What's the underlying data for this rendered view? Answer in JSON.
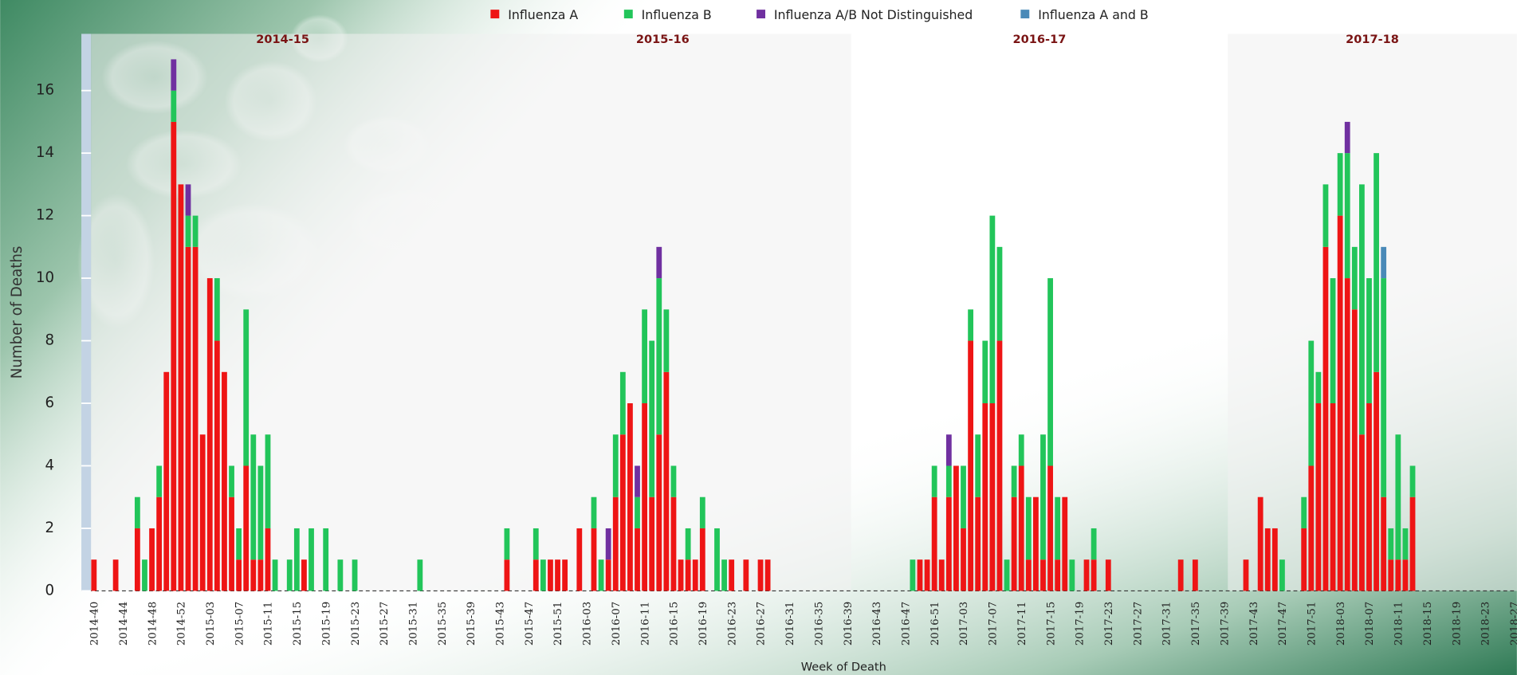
{
  "chart_data": {
    "type": "stacked_bar",
    "x_label": "Week of Death",
    "y_label": "Number of Deaths",
    "season_labels": [
      "2014-15",
      "2015-16",
      "2016-17",
      "2017-18"
    ],
    "ylim": [
      0,
      18
    ],
    "yticks": [
      0,
      2,
      4,
      6,
      8,
      10,
      12,
      14,
      16
    ],
    "categories": [
      "2014-40",
      null,
      null,
      null,
      "2014-44",
      null,
      null,
      null,
      "2014-48",
      null,
      null,
      null,
      "2014-52",
      null,
      null,
      null,
      "2015-03",
      null,
      null,
      null,
      "2015-07",
      null,
      null,
      null,
      "2015-11",
      null,
      null,
      null,
      "2015-15",
      null,
      null,
      null,
      "2015-19",
      null,
      null,
      null,
      "2015-23",
      null,
      null,
      null,
      "2015-27",
      null,
      null,
      null,
      "2015-31",
      null,
      null,
      null,
      "2015-35",
      null,
      null,
      null,
      "2015-39",
      null,
      null,
      null,
      "2015-43",
      null,
      null,
      null,
      "2015-47",
      null,
      null,
      null,
      "2015-51",
      null,
      null,
      null,
      "2016-03",
      null,
      null,
      null,
      "2016-07",
      null,
      null,
      null,
      "2016-11",
      null,
      null,
      null,
      "2016-15",
      null,
      null,
      null,
      "2016-19",
      null,
      null,
      null,
      "2016-23",
      null,
      null,
      null,
      "2016-27",
      null,
      null,
      null,
      "2016-31",
      null,
      null,
      null,
      "2016-35",
      null,
      null,
      null,
      "2016-39",
      null,
      null,
      null,
      "2016-43",
      null,
      null,
      null,
      "2016-47",
      null,
      null,
      null,
      "2016-51",
      null,
      null,
      null,
      "2017-03",
      null,
      null,
      null,
      "2017-07",
      null,
      null,
      null,
      "2017-11",
      null,
      null,
      null,
      "2017-15",
      null,
      null,
      null,
      "2017-19",
      null,
      null,
      null,
      "2017-23",
      null,
      null,
      null,
      "2017-27",
      null,
      null,
      null,
      "2017-31",
      null,
      null,
      null,
      "2017-35",
      null,
      null,
      null,
      "2017-39",
      null,
      null,
      null,
      "2017-43",
      null,
      null,
      null,
      "2017-47",
      null,
      null,
      null,
      "2017-51",
      null,
      null,
      null,
      "2018-03",
      null,
      null,
      null,
      "2018-07",
      null,
      null,
      null,
      "2018-11",
      null,
      null,
      null,
      "2018-15",
      null,
      null,
      null,
      "2018-19",
      null,
      null,
      null,
      "2018-23",
      null,
      null,
      null,
      "2018-27"
    ],
    "series": [
      {
        "name": "Influenza A",
        "color": "#ee1515",
        "values": [
          1,
          0,
          0,
          1,
          0,
          0,
          2,
          0,
          2,
          3,
          7,
          15,
          13,
          11,
          11,
          5,
          10,
          8,
          7,
          3,
          1,
          4,
          1,
          1,
          2,
          0,
          0,
          0,
          0,
          1,
          0,
          0,
          0,
          0,
          0,
          0,
          0,
          0,
          0,
          0,
          0,
          0,
          0,
          0,
          0,
          0,
          0,
          0,
          0,
          0,
          0,
          0,
          0,
          0,
          0,
          0,
          0,
          1,
          0,
          0,
          0,
          1,
          0,
          1,
          1,
          1,
          0,
          2,
          0,
          2,
          0,
          1,
          3,
          5,
          6,
          2,
          6,
          3,
          5,
          7,
          3,
          1,
          1,
          1,
          2,
          0,
          0,
          0,
          1,
          0,
          1,
          0,
          1,
          1,
          0,
          0,
          0,
          0,
          0,
          0,
          0,
          0,
          0,
          0,
          0,
          0,
          0,
          0,
          0,
          0,
          0,
          0,
          0,
          0,
          1,
          1,
          3,
          1,
          3,
          4,
          2,
          8,
          3,
          6,
          6,
          8,
          0,
          3,
          4,
          1,
          3,
          1,
          4,
          1,
          3,
          0,
          0,
          1,
          1,
          0,
          1,
          0,
          0,
          0,
          0,
          0,
          0,
          0,
          0,
          0,
          1,
          0,
          1,
          0,
          0,
          0,
          0,
          0,
          0,
          1,
          0,
          3,
          2,
          2,
          0,
          0,
          0,
          2,
          4,
          6,
          11,
          6,
          12,
          10,
          9,
          5,
          6,
          7,
          3,
          1,
          1,
          1,
          3,
          0,
          0,
          0,
          0,
          0,
          0,
          0,
          0,
          0,
          0,
          0,
          0,
          0,
          0
        ]
      },
      {
        "name": "Influenza B",
        "color": "#22c55a",
        "values": [
          0,
          0,
          0,
          0,
          0,
          0,
          1,
          1,
          0,
          1,
          0,
          1,
          0,
          1,
          1,
          0,
          0,
          2,
          0,
          1,
          1,
          5,
          4,
          3,
          3,
          1,
          0,
          1,
          2,
          0,
          2,
          0,
          2,
          0,
          1,
          0,
          1,
          0,
          0,
          0,
          0,
          0,
          0,
          0,
          0,
          1,
          0,
          0,
          0,
          0,
          0,
          0,
          0,
          0,
          0,
          0,
          0,
          1,
          0,
          0,
          0,
          1,
          1,
          0,
          0,
          0,
          0,
          0,
          0,
          1,
          1,
          0,
          2,
          2,
          0,
          1,
          3,
          5,
          5,
          2,
          1,
          0,
          1,
          0,
          1,
          0,
          2,
          1,
          0,
          0,
          0,
          0,
          0,
          0,
          0,
          0,
          0,
          0,
          0,
          0,
          0,
          0,
          0,
          0,
          0,
          0,
          0,
          0,
          0,
          0,
          0,
          0,
          0,
          1,
          0,
          0,
          1,
          0,
          1,
          0,
          2,
          1,
          2,
          2,
          6,
          3,
          1,
          1,
          1,
          2,
          0,
          4,
          6,
          2,
          0,
          1,
          0,
          0,
          1,
          0,
          0,
          0,
          0,
          0,
          0,
          0,
          0,
          0,
          0,
          0,
          0,
          0,
          0,
          0,
          0,
          0,
          0,
          0,
          0,
          0,
          0,
          0,
          0,
          0,
          1,
          0,
          0,
          1,
          4,
          1,
          2,
          4,
          2,
          4,
          2,
          8,
          4,
          7,
          7,
          1,
          4,
          1,
          1,
          0,
          0,
          0,
          0,
          0,
          0,
          0,
          0,
          0,
          0,
          0,
          0,
          0,
          0
        ]
      },
      {
        "name": "Influenza A/B Not Distinguished",
        "color": "#7030a0",
        "values": [
          0,
          0,
          0,
          0,
          0,
          0,
          0,
          0,
          0,
          0,
          0,
          1,
          0,
          1,
          0,
          0,
          0,
          0,
          0,
          0,
          0,
          0,
          0,
          0,
          0,
          0,
          0,
          0,
          0,
          0,
          0,
          0,
          0,
          0,
          0,
          0,
          0,
          0,
          0,
          0,
          0,
          0,
          0,
          0,
          0,
          0,
          0,
          0,
          0,
          0,
          0,
          0,
          0,
          0,
          0,
          0,
          0,
          0,
          0,
          0,
          0,
          0,
          0,
          0,
          0,
          0,
          0,
          0,
          0,
          0,
          0,
          1,
          0,
          0,
          0,
          1,
          0,
          0,
          1,
          0,
          0,
          0,
          0,
          0,
          0,
          0,
          0,
          0,
          0,
          0,
          0,
          0,
          0,
          0,
          0,
          0,
          0,
          0,
          0,
          0,
          0,
          0,
          0,
          0,
          0,
          0,
          0,
          0,
          0,
          0,
          0,
          0,
          0,
          0,
          0,
          0,
          0,
          0,
          1,
          0,
          0,
          0,
          0,
          0,
          0,
          0,
          0,
          0,
          0,
          0,
          0,
          0,
          0,
          0,
          0,
          0,
          0,
          0,
          0,
          0,
          0,
          0,
          0,
          0,
          0,
          0,
          0,
          0,
          0,
          0,
          0,
          0,
          0,
          0,
          0,
          0,
          0,
          0,
          0,
          0,
          0,
          0,
          0,
          0,
          0,
          0,
          0,
          0,
          0,
          0,
          0,
          0,
          0,
          1,
          0,
          0,
          0,
          0,
          0,
          0,
          0,
          0,
          0,
          0,
          0,
          0,
          0,
          0,
          0,
          0,
          0,
          0,
          0,
          0,
          0,
          0,
          0
        ]
      },
      {
        "name": "Influenza A and B",
        "color": "#4a8ab8",
        "values": [
          0,
          0,
          0,
          0,
          0,
          0,
          0,
          0,
          0,
          0,
          0,
          0,
          0,
          0,
          0,
          0,
          0,
          0,
          0,
          0,
          0,
          0,
          0,
          0,
          0,
          0,
          0,
          0,
          0,
          0,
          0,
          0,
          0,
          0,
          0,
          0,
          0,
          0,
          0,
          0,
          0,
          0,
          0,
          0,
          0,
          0,
          0,
          0,
          0,
          0,
          0,
          0,
          0,
          0,
          0,
          0,
          0,
          0,
          0,
          0,
          0,
          0,
          0,
          0,
          0,
          0,
          0,
          0,
          0,
          0,
          0,
          0,
          0,
          0,
          0,
          0,
          0,
          0,
          0,
          0,
          0,
          0,
          0,
          0,
          0,
          0,
          0,
          0,
          0,
          0,
          0,
          0,
          0,
          0,
          0,
          0,
          0,
          0,
          0,
          0,
          0,
          0,
          0,
          0,
          0,
          0,
          0,
          0,
          0,
          0,
          0,
          0,
          0,
          0,
          0,
          0,
          0,
          0,
          0,
          0,
          0,
          0,
          0,
          0,
          0,
          0,
          0,
          0,
          0,
          0,
          0,
          0,
          0,
          0,
          0,
          0,
          0,
          0,
          0,
          0,
          0,
          0,
          0,
          0,
          0,
          0,
          0,
          0,
          0,
          0,
          0,
          0,
          0,
          0,
          0,
          0,
          0,
          0,
          0,
          0,
          0,
          0,
          0,
          0,
          0,
          0,
          0,
          0,
          0,
          0,
          0,
          0,
          0,
          0,
          0,
          0,
          0,
          0,
          1,
          0,
          0,
          0,
          0,
          0,
          0,
          0,
          0,
          0,
          0,
          0,
          0,
          0,
          0,
          0,
          0,
          0,
          0
        ]
      }
    ]
  }
}
